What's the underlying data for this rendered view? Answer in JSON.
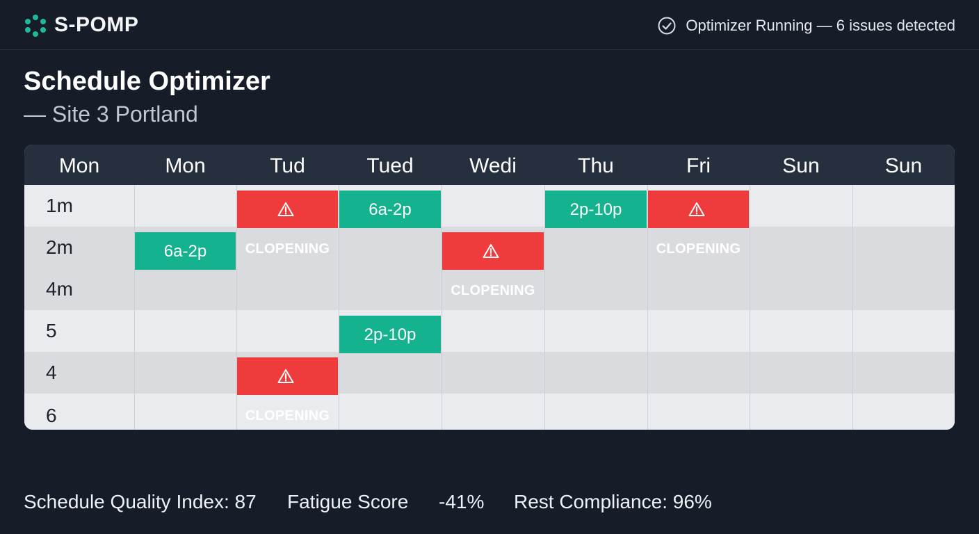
{
  "brand": {
    "name": "S-POMP",
    "logo_icon": "hexagon-dots-logo-icon",
    "accent": "#1dbb9b"
  },
  "status": {
    "icon": "check-circle-icon",
    "text": "Optimizer Running — 6 issues detected"
  },
  "page": {
    "title": "Schedule Optimizer",
    "subtitle": "— Site 3 Portland"
  },
  "schedule": {
    "days": [
      "Mon",
      "Mon",
      "Tud",
      "Tued",
      "Wedi",
      "Thu",
      "Fri",
      "Sun",
      "Sun"
    ],
    "rows": [
      "1m",
      "2m",
      "4m",
      "5",
      "4",
      "6"
    ],
    "shifts": [
      {
        "row": 0,
        "col": 2,
        "type": "clopening",
        "label": "CLOPENING"
      },
      {
        "row": 0,
        "col": 3,
        "type": "shift",
        "label": "6a-2p"
      },
      {
        "row": 0,
        "col": 5,
        "type": "shift",
        "label": "2p-10p"
      },
      {
        "row": 0,
        "col": 6,
        "type": "clopening",
        "label": "CLOPENING"
      },
      {
        "row": 1,
        "col": 1,
        "type": "shift",
        "label": "6a-2p"
      },
      {
        "row": 1,
        "col": 4,
        "type": "clopening",
        "label": "CLOPENING"
      },
      {
        "row": 3,
        "col": 3,
        "type": "shift",
        "label": "2p-10p"
      },
      {
        "row": 4,
        "col": 2,
        "type": "clopening",
        "label": "CLOPENING"
      }
    ],
    "colors": {
      "shift": "#14b28e",
      "clopening": "#ef3b3b",
      "header": "#262f3e"
    },
    "warning_icon": "warning-triangle-icon"
  },
  "metrics": {
    "quality": "Schedule Quality Index: 87",
    "fatigue_label": "Fatigue Score",
    "fatigue_value": "-41%",
    "rest": "Rest Compliance: 96%"
  }
}
